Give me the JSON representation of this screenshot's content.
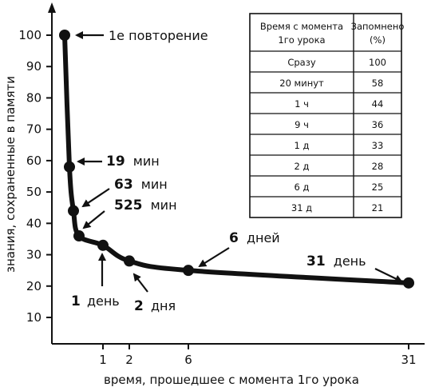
{
  "chart_data": {
    "type": "line",
    "title": "",
    "xlabel": "время, прошедшее с момента 1го урока",
    "ylabel": "знания, сохраненные в памяти",
    "y_ticks": [
      10,
      20,
      30,
      40,
      50,
      60,
      70,
      80,
      90,
      100
    ],
    "x_ticks": [
      "1",
      "2",
      "6",
      "31"
    ],
    "series": [
      {
        "points": [
          {
            "label": "Сразу",
            "y": 100
          },
          {
            "label": "20 минут",
            "y": 58
          },
          {
            "label": "1 ч",
            "y": 44
          },
          {
            "label": "9 ч",
            "y": 36
          },
          {
            "label": "1 д",
            "y": 33
          },
          {
            "label": "2 д",
            "y": 28
          },
          {
            "label": "6 д",
            "y": 25
          },
          {
            "label": "31 д",
            "y": 21
          }
        ]
      }
    ],
    "annotations": [
      {
        "id": "first",
        "num": "",
        "text": "1е повторение"
      },
      {
        "id": "m19",
        "num": "19",
        "text": "мин"
      },
      {
        "id": "m63",
        "num": "63",
        "text": "мин"
      },
      {
        "id": "m525",
        "num": "525",
        "text": "мин"
      },
      {
        "id": "d1",
        "num": "1",
        "text": "день"
      },
      {
        "id": "d2",
        "num": "2",
        "text": "дня"
      },
      {
        "id": "d6",
        "num": "6",
        "text": "дней"
      },
      {
        "id": "d31",
        "num": "31",
        "text": "день"
      }
    ],
    "table": {
      "headers": [
        "Время с момента 1го урока",
        "Запомнено (%)"
      ],
      "rows": [
        [
          "Сразу",
          "100"
        ],
        [
          "20 минут",
          "58"
        ],
        [
          "1 ч",
          "44"
        ],
        [
          "9 ч",
          "36"
        ],
        [
          "1 д",
          "33"
        ],
        [
          "2 д",
          "28"
        ],
        [
          "6 д",
          "25"
        ],
        [
          "31 д",
          "21"
        ]
      ]
    }
  }
}
